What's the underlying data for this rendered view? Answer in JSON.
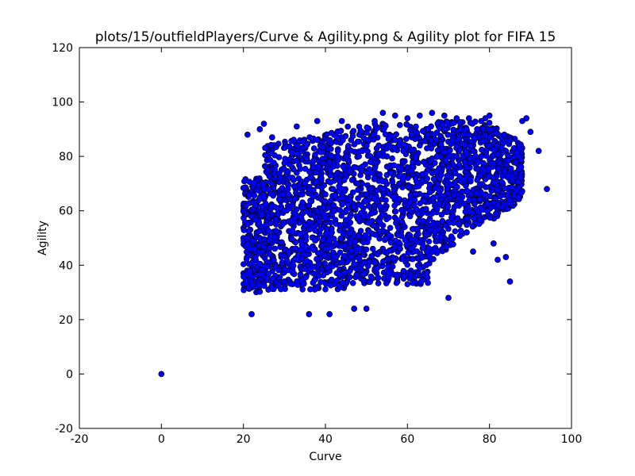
{
  "chart_data": {
    "type": "scatter",
    "title": "plots/15/outfieldPlayers/Curve & Agility.png & Agility plot for FIFA 15",
    "xlabel": "Curve",
    "ylabel": "Agility",
    "xlim": [
      -20,
      100
    ],
    "ylim": [
      -20,
      120
    ],
    "xticks": [
      -20,
      0,
      20,
      40,
      60,
      80,
      100
    ],
    "yticks": [
      -20,
      0,
      20,
      40,
      60,
      80,
      100,
      120
    ],
    "grid": false,
    "marker_color": "#0000ff",
    "edge_color": "#000000",
    "series": [
      {
        "x": [
          0,
          21,
          22,
          24,
          25,
          27,
          30,
          33,
          36,
          38,
          41,
          44,
          47,
          50,
          52,
          54,
          57,
          60,
          63,
          66,
          69,
          70,
          72,
          75,
          76,
          78,
          79,
          80,
          81,
          82,
          84,
          85,
          86,
          87,
          88,
          89,
          90,
          92,
          94,
          20,
          21,
          22,
          23,
          24,
          25,
          26,
          27,
          28,
          29,
          30,
          31,
          32,
          33,
          34,
          35,
          36,
          37,
          38,
          39,
          40,
          41,
          42,
          43,
          44,
          45,
          46,
          47,
          48,
          49,
          50,
          51,
          52,
          53,
          54,
          55,
          56,
          57,
          58,
          59,
          60,
          61,
          62,
          63,
          64,
          65,
          66,
          67,
          68,
          69,
          70,
          71,
          72,
          73,
          74,
          75,
          76,
          77,
          78,
          79,
          80
        ],
        "y": [
          0,
          88,
          22,
          90,
          92,
          87,
          34,
          91,
          22,
          93,
          22,
          93,
          24,
          24,
          93,
          96,
          95,
          94,
          95,
          96,
          95,
          28,
          94,
          94,
          45,
          93,
          94,
          95,
          48,
          42,
          43,
          34,
          83,
          65,
          93,
          94,
          89,
          82,
          68,
          60,
          55,
          58,
          62,
          50,
          65,
          58,
          70,
          55,
          72,
          60,
          66,
          62,
          74,
          58,
          70,
          62,
          76,
          60,
          72,
          66,
          78,
          62,
          74,
          68,
          80,
          64,
          76,
          70,
          82,
          66,
          78,
          72,
          84,
          68,
          80,
          74,
          86,
          70,
          82,
          76,
          88,
          72,
          84,
          78,
          88,
          74,
          86,
          80,
          90,
          76,
          86,
          80,
          90,
          78,
          88,
          82,
          90,
          80,
          88,
          84
        ]
      }
    ]
  }
}
